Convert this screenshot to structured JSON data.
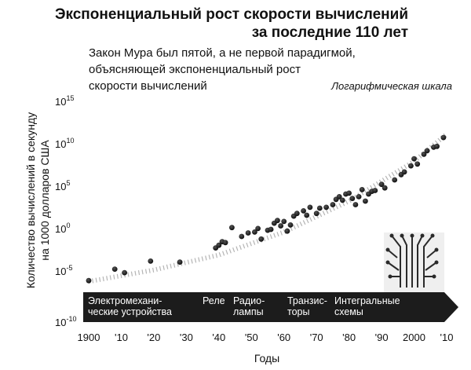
{
  "chart_data": {
    "type": "scatter",
    "title_lines": [
      "Экспоненциальный рост скорости вычислений",
      "за последние 110 лет"
    ],
    "subtitle_lines": [
      "Закон Мура был пятой, а не первой парадигмой,",
      "объясняющей экспоненциальный рост",
      "скорости вычислений"
    ],
    "scale_note": "Логарифмическая шкала",
    "log_scale": true,
    "xlabel": "Годы",
    "ylabel_lines": [
      "Количество вычислений в секунду",
      "на 1000 долларов США"
    ],
    "xlim": [
      1900,
      2010
    ],
    "ylim_exponent": [
      -10,
      15
    ],
    "x_ticks": [
      "1900",
      "'10",
      "'20",
      "'30",
      "'40",
      "'50",
      "'60",
      "'70",
      "'80",
      "'90",
      "2000",
      "'10"
    ],
    "y_ticks": [
      {
        "base": "10",
        "exp": "15"
      },
      {
        "base": "10",
        "exp": "10"
      },
      {
        "base": "10",
        "exp": "5"
      },
      {
        "base": "10",
        "exp": "0"
      },
      {
        "base": "10",
        "exp": "-5"
      },
      {
        "base": "10",
        "exp": "-10"
      }
    ],
    "trend": [
      [
        1900,
        -5.4
      ],
      [
        1920,
        -4.1
      ],
      [
        1940,
        -2.4
      ],
      [
        1960,
        0.2
      ],
      [
        1980,
        3.7
      ],
      [
        2000,
        8.2
      ],
      [
        2010,
        11.3
      ]
    ],
    "series": [
      {
        "points": [
          [
            1900,
            -5.3
          ],
          [
            1908,
            -4.0
          ],
          [
            1911,
            -4.4
          ],
          [
            1919,
            -3.1
          ],
          [
            1928,
            -3.2
          ],
          [
            1939,
            -1.6
          ],
          [
            1940,
            -1.3
          ],
          [
            1941,
            -0.9
          ],
          [
            1942,
            -1.0
          ],
          [
            1944,
            0.7
          ],
          [
            1947,
            -0.3
          ],
          [
            1949,
            0.1
          ],
          [
            1951,
            0.2
          ],
          [
            1952,
            0.6
          ],
          [
            1953,
            -0.6
          ],
          [
            1955,
            0.4
          ],
          [
            1956,
            0.5
          ],
          [
            1957,
            1.2
          ],
          [
            1958,
            1.5
          ],
          [
            1959,
            0.9
          ],
          [
            1960,
            1.4
          ],
          [
            1961,
            0.3
          ],
          [
            1962,
            1.0
          ],
          [
            1963,
            2.0
          ],
          [
            1964,
            2.3
          ],
          [
            1966,
            2.6
          ],
          [
            1967,
            2.1
          ],
          [
            1968,
            3.0
          ],
          [
            1970,
            2.3
          ],
          [
            1971,
            2.9
          ],
          [
            1973,
            3.0
          ],
          [
            1975,
            3.3
          ],
          [
            1976,
            3.9
          ],
          [
            1977,
            4.2
          ],
          [
            1978,
            3.8
          ],
          [
            1979,
            4.5
          ],
          [
            1980,
            4.6
          ],
          [
            1981,
            4.0
          ],
          [
            1982,
            3.3
          ],
          [
            1983,
            4.2
          ],
          [
            1984,
            5.0
          ],
          [
            1985,
            3.7
          ],
          [
            1986,
            4.5
          ],
          [
            1987,
            4.8
          ],
          [
            1988,
            4.9
          ],
          [
            1990,
            5.6
          ],
          [
            1991,
            5.2
          ],
          [
            1994,
            6.1
          ],
          [
            1996,
            6.7
          ],
          [
            1997,
            7.0
          ],
          [
            1999,
            7.7
          ],
          [
            2000,
            8.5
          ],
          [
            2001,
            7.9
          ],
          [
            2003,
            9.0
          ],
          [
            2004,
            9.4
          ],
          [
            2006,
            9.8
          ],
          [
            2007,
            9.9
          ],
          [
            2009,
            10.9
          ]
        ]
      }
    ],
    "eras": [
      {
        "lines": [
          "Электромехани-",
          "ческие устройства"
        ],
        "start": 1900
      },
      {
        "lines": [
          "Реле"
        ],
        "start": 1940
      },
      {
        "lines": [
          "Радио-",
          "лампы"
        ],
        "start": 1946
      },
      {
        "lines": [
          "Транзис-",
          "торы"
        ],
        "start": 1961
      },
      {
        "lines": [
          "Интегральные",
          "схемы"
        ],
        "start": 1974
      }
    ]
  }
}
